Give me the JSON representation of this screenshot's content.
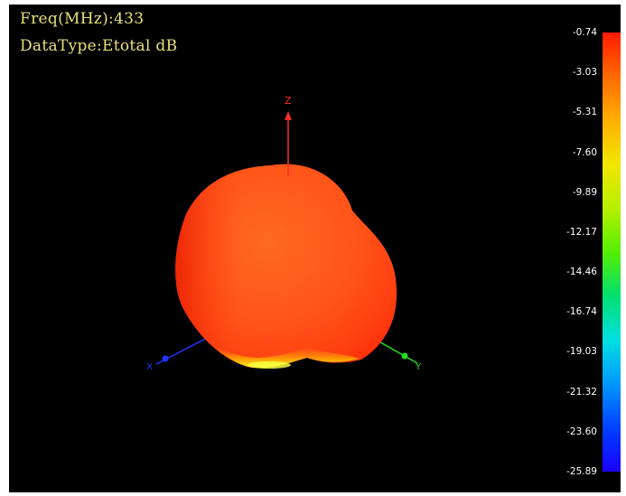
{
  "header": {
    "freq_label": "Freq(MHz):433",
    "datatype_label": "DataType:Etotal dB"
  },
  "axes": {
    "z_label": "Z",
    "y_label": "Y",
    "x_label": "X",
    "z_color": "#ff2a2a",
    "y_color": "#22dd22",
    "x_color": "#2233ff"
  },
  "colorbar": {
    "max": -0.74,
    "min": -25.89,
    "ticks": [
      "-0.74",
      "-3.03",
      "-5.31",
      "-7.60",
      "-9.89",
      "-12.17",
      "-14.46",
      "-16.74",
      "-19.03",
      "-21.32",
      "-23.60",
      "-25.89"
    ]
  },
  "pattern": {
    "dominant_color": "#ff5a1a",
    "rim_color": "#ffe600"
  }
}
